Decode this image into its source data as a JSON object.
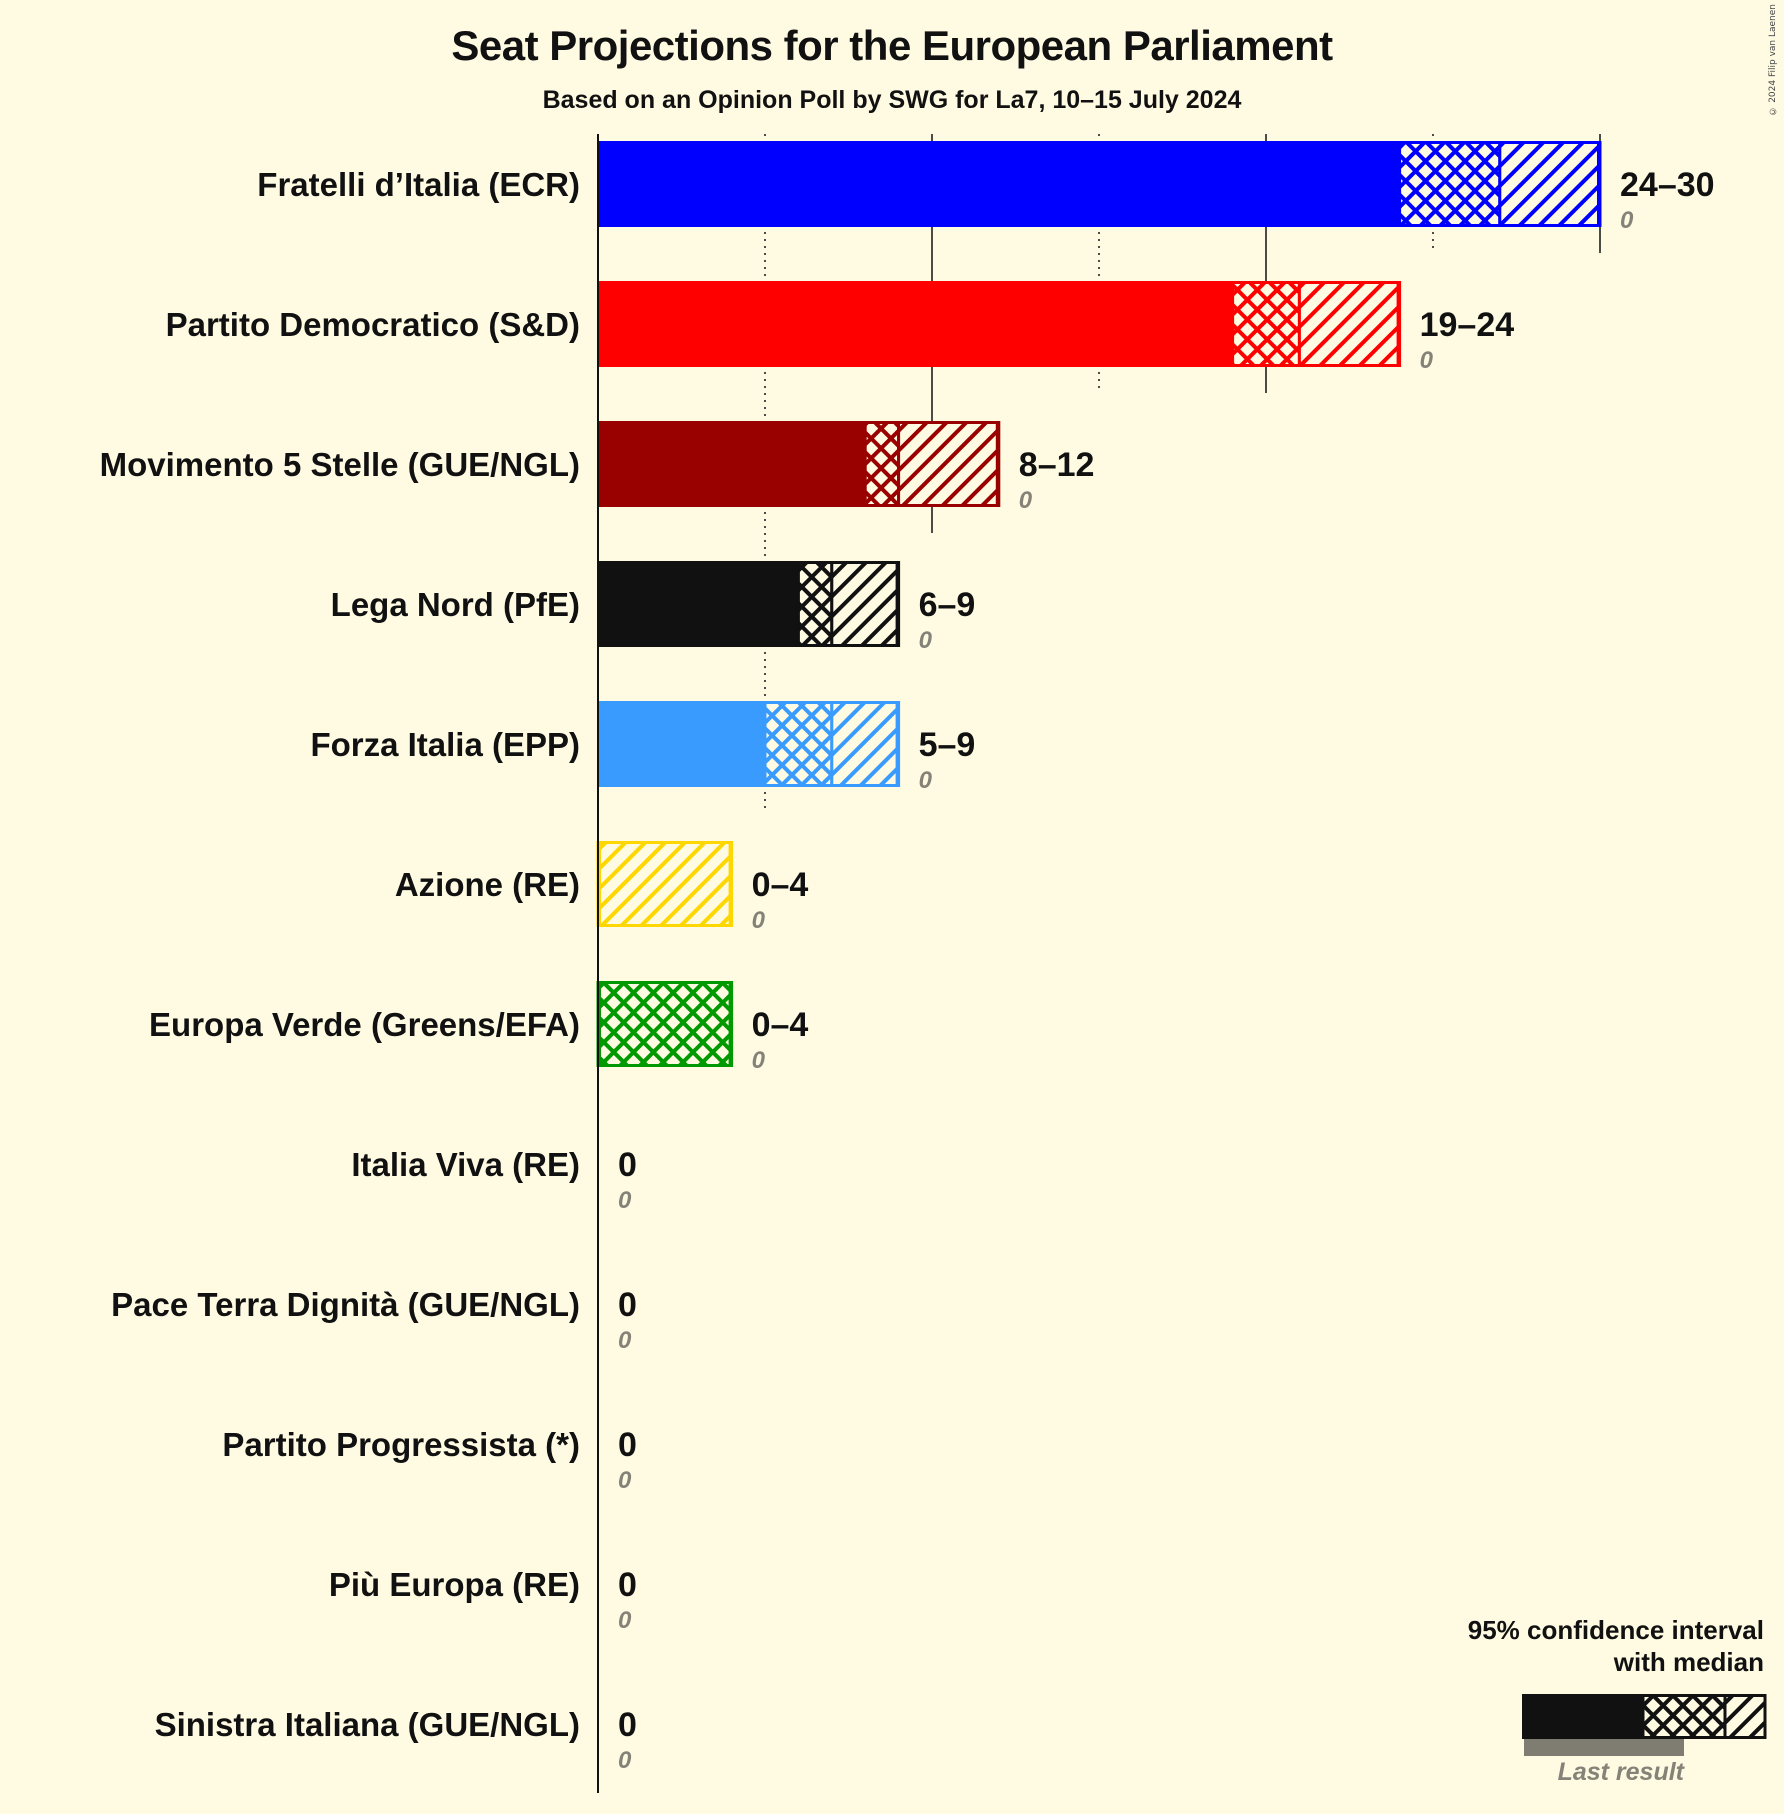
{
  "title": "Seat Projections for the European Parliament",
  "subtitle": "Based on an Opinion Poll by SWG for La7, 10–15 July 2024",
  "copyright": "© 2024 Filip van Laenen",
  "legend": {
    "title_line1": "95% confidence interval",
    "title_line2": "with median",
    "last_result": "Last result"
  },
  "colors": {
    "background": "#FFFBE3",
    "axis": "#111111",
    "text": "#111111",
    "last_result_text": "#858378",
    "legend_last_bar": "#7F7D72"
  },
  "chart_data": {
    "type": "bar",
    "orientation": "horizontal",
    "title": "Seat Projections for the European Parliament",
    "subtitle": "Based on an Opinion Poll by SWG for La7, 10–15 July 2024",
    "xlabel": "",
    "ylabel": "",
    "xlim": [
      0,
      30
    ],
    "grid": {
      "solid": [
        0,
        10,
        20,
        30
      ],
      "dotted": [
        5,
        15,
        25
      ]
    },
    "legend_position": "bottom-right",
    "categories": [
      "Fratelli d’Italia (ECR)",
      "Partito Democratico (S&D)",
      "Movimento 5 Stelle (GUE/NGL)",
      "Lega Nord (PfE)",
      "Forza Italia (EPP)",
      "Azione (RE)",
      "Europa Verde (Greens/EFA)",
      "Italia Viva (RE)",
      "Pace Terra Dignità (GUE/NGL)",
      "Partito Progressista (*)",
      "Più Europa (RE)",
      "Sinistra Italiana (GUE/NGL)"
    ],
    "series": [
      {
        "name": "CI lower (95%)",
        "values": [
          24,
          19,
          8,
          6,
          5,
          0,
          0,
          0,
          0,
          0,
          0,
          0
        ]
      },
      {
        "name": "Median",
        "values": [
          27,
          21,
          9,
          7,
          7,
          0,
          4,
          0,
          0,
          0,
          0,
          0
        ]
      },
      {
        "name": "CI upper (95%)",
        "values": [
          30,
          24,
          12,
          9,
          9,
          4,
          4,
          0,
          0,
          0,
          0,
          0
        ]
      },
      {
        "name": "Last result",
        "values": [
          0,
          0,
          0,
          0,
          0,
          0,
          0,
          0,
          0,
          0,
          0,
          0
        ]
      }
    ],
    "parties": [
      {
        "name": "Fratelli d’Italia (ECR)",
        "color": "#0000FF",
        "low": 24,
        "median": 27,
        "high": 30,
        "range_label": "24–30",
        "last_label": "0"
      },
      {
        "name": "Partito Democratico (S&D)",
        "color": "#FF0000",
        "low": 19,
        "median": 21,
        "high": 24,
        "range_label": "19–24",
        "last_label": "0"
      },
      {
        "name": "Movimento 5 Stelle (GUE/NGL)",
        "color": "#990000",
        "low": 8,
        "median": 9,
        "high": 12,
        "range_label": "8–12",
        "last_label": "0"
      },
      {
        "name": "Lega Nord (PfE)",
        "color": "#111111",
        "low": 6,
        "median": 7,
        "high": 9,
        "range_label": "6–9",
        "last_label": "0"
      },
      {
        "name": "Forza Italia (EPP)",
        "color": "#3A9BFF",
        "low": 5,
        "median": 7,
        "high": 9,
        "range_label": "5–9",
        "last_label": "0"
      },
      {
        "name": "Azione (RE)",
        "color": "#FFD700",
        "low": 0,
        "median": 0,
        "high": 4,
        "range_label": "0–4",
        "last_label": "0"
      },
      {
        "name": "Europa Verde (Greens/EFA)",
        "color": "#009900",
        "low": 0,
        "median": 4,
        "high": 4,
        "range_label": "0–4",
        "last_label": "0"
      },
      {
        "name": "Italia Viva (RE)",
        "color": "#111111",
        "low": 0,
        "median": 0,
        "high": 0,
        "range_label": "0",
        "last_label": "0"
      },
      {
        "name": "Pace Terra Dignità (GUE/NGL)",
        "color": "#111111",
        "low": 0,
        "median": 0,
        "high": 0,
        "range_label": "0",
        "last_label": "0"
      },
      {
        "name": "Partito Progressista (*)",
        "color": "#111111",
        "low": 0,
        "median": 0,
        "high": 0,
        "range_label": "0",
        "last_label": "0"
      },
      {
        "name": "Più Europa (RE)",
        "color": "#111111",
        "low": 0,
        "median": 0,
        "high": 0,
        "range_label": "0",
        "last_label": "0"
      },
      {
        "name": "Sinistra Italiana (GUE/NGL)",
        "color": "#111111",
        "low": 0,
        "median": 0,
        "high": 0,
        "range_label": "0",
        "last_label": "0"
      }
    ]
  }
}
